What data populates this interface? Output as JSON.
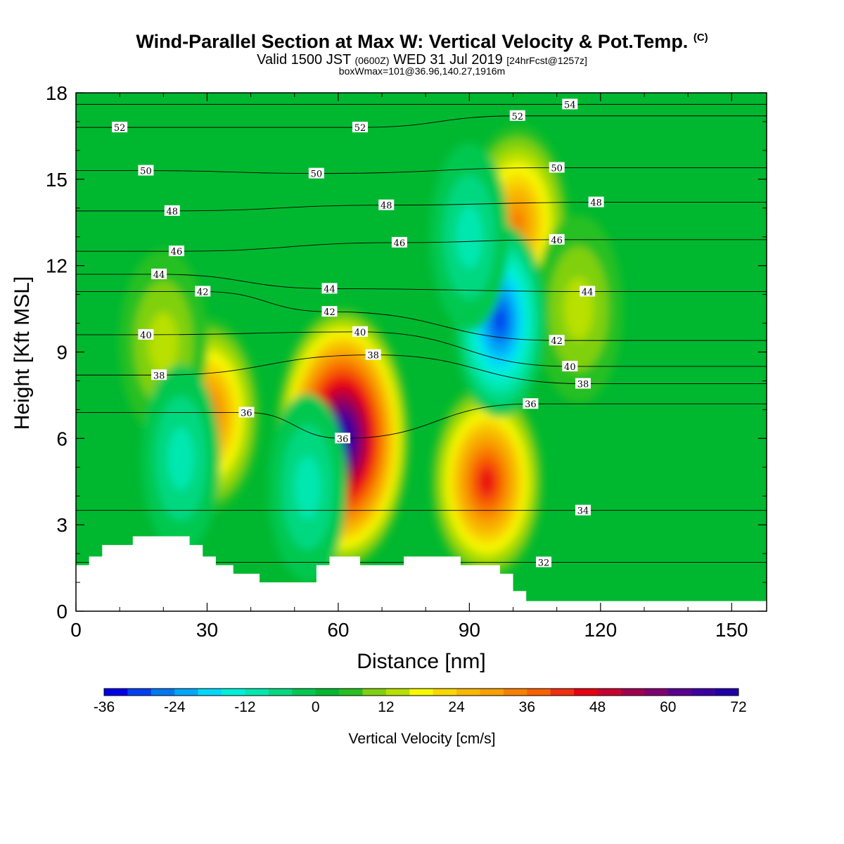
{
  "header": {
    "title": "Wind-Parallel Section at Max W: Vertical Velocity & Pot.Temp.",
    "title_tag": "(C)",
    "valid_prefix": "Valid 1500 JST",
    "valid_utc": "(0600Z)",
    "valid_date": "WED 31 Jul 2019",
    "forecast": "[24hrFcst@1257z]",
    "box_info": "boxWmax=101@36.96,140.27,1916m"
  },
  "chart_data": {
    "type": "heatmap",
    "xlabel": "Distance [nm]",
    "ylabel": "Height [Kft MSL]",
    "xlim": [
      0,
      158
    ],
    "ylim": [
      0,
      18
    ],
    "xticks": [
      0,
      30,
      60,
      90,
      120,
      150
    ],
    "yticks": [
      0,
      3,
      6,
      9,
      12,
      15,
      18
    ],
    "colorbar": {
      "label": "Vertical Velocity [cm/s]",
      "min": -36,
      "max": 72,
      "step": 4,
      "tick_values": [
        -36,
        -24,
        -12,
        0,
        12,
        24,
        36,
        48,
        60,
        72
      ],
      "colors": [
        "#0000e6",
        "#0040f0",
        "#0078f0",
        "#00a8f8",
        "#00d8f8",
        "#00f0d8",
        "#00e8b0",
        "#00d880",
        "#00c850",
        "#00b830",
        "#28c020",
        "#80d010",
        "#b8e000",
        "#f8f800",
        "#f8d800",
        "#f8b800",
        "#f8a000",
        "#f88000",
        "#f86000",
        "#f03010",
        "#e80010",
        "#c80030",
        "#a00050",
        "#800070",
        "#5a0090",
        "#3c00a0",
        "#2000a8"
      ]
    },
    "updrafts": [
      {
        "x": 30,
        "z": 6.8,
        "w": 34
      },
      {
        "x": 61,
        "z": 6.0,
        "w": 72
      },
      {
        "x": 94,
        "z": 4.5,
        "w": 44
      },
      {
        "x": 101,
        "z": 13.5,
        "w": 30
      },
      {
        "x": 115,
        "z": 10.5,
        "w": 12
      },
      {
        "x": 20,
        "z": 9.3,
        "w": 10
      }
    ],
    "downdrafts": [
      {
        "x": 53,
        "z": 4.3,
        "w": -14
      },
      {
        "x": 97,
        "z": 10.1,
        "w": -34
      },
      {
        "x": 90,
        "z": 13.0,
        "w": -14
      },
      {
        "x": 24,
        "z": 5.3,
        "w": -12
      }
    ],
    "terrain": [
      [
        0,
        1.6
      ],
      [
        3,
        1.6
      ],
      [
        3,
        1.9
      ],
      [
        6,
        1.9
      ],
      [
        6,
        2.3
      ],
      [
        13,
        2.3
      ],
      [
        13,
        2.6
      ],
      [
        26,
        2.6
      ],
      [
        26,
        2.3
      ],
      [
        29,
        2.3
      ],
      [
        29,
        1.9
      ],
      [
        32,
        1.9
      ],
      [
        32,
        1.6
      ],
      [
        36,
        1.6
      ],
      [
        36,
        1.3
      ],
      [
        42,
        1.3
      ],
      [
        42,
        1.0
      ],
      [
        55,
        1.0
      ],
      [
        55,
        1.6
      ],
      [
        58,
        1.6
      ],
      [
        58,
        1.9
      ],
      [
        65,
        1.9
      ],
      [
        65,
        1.6
      ],
      [
        75,
        1.6
      ],
      [
        75,
        1.9
      ],
      [
        88,
        1.9
      ],
      [
        88,
        1.6
      ],
      [
        97,
        1.6
      ],
      [
        97,
        1.3
      ],
      [
        100,
        1.3
      ],
      [
        100,
        0.7
      ],
      [
        103,
        0.7
      ],
      [
        103,
        0.35
      ],
      [
        158,
        0.35
      ]
    ],
    "theta_contours": [
      {
        "level": 32,
        "label_pos": [
          107,
          1.7
        ]
      },
      {
        "level": 34,
        "label_pos": [
          116,
          3.5
        ]
      },
      {
        "level": 36,
        "label_pos": [
          39,
          6.9
        ]
      },
      {
        "level": 36,
        "label_pos": [
          61,
          6.0
        ]
      },
      {
        "level": 36,
        "label_pos": [
          104,
          7.2
        ]
      },
      {
        "level": 38,
        "label_pos": [
          19,
          8.2
        ]
      },
      {
        "level": 38,
        "label_pos": [
          68,
          8.9
        ]
      },
      {
        "level": 38,
        "label_pos": [
          116,
          7.9
        ]
      },
      {
        "level": 40,
        "label_pos": [
          16,
          9.6
        ]
      },
      {
        "level": 40,
        "label_pos": [
          65,
          9.7
        ]
      },
      {
        "level": 40,
        "label_pos": [
          113,
          8.5
        ]
      },
      {
        "level": 42,
        "label_pos": [
          29,
          11.1
        ]
      },
      {
        "level": 42,
        "label_pos": [
          58,
          10.4
        ]
      },
      {
        "level": 42,
        "label_pos": [
          110,
          9.4
        ]
      },
      {
        "level": 44,
        "label_pos": [
          19,
          11.7
        ]
      },
      {
        "level": 44,
        "label_pos": [
          58,
          11.2
        ]
      },
      {
        "level": 44,
        "label_pos": [
          117,
          11.1
        ]
      },
      {
        "level": 46,
        "label_pos": [
          23,
          12.5
        ]
      },
      {
        "level": 46,
        "label_pos": [
          74,
          12.8
        ]
      },
      {
        "level": 46,
        "label_pos": [
          110,
          12.9
        ]
      },
      {
        "level": 48,
        "label_pos": [
          22,
          13.9
        ]
      },
      {
        "level": 48,
        "label_pos": [
          71,
          14.1
        ]
      },
      {
        "level": 48,
        "label_pos": [
          119,
          14.2
        ]
      },
      {
        "level": 50,
        "label_pos": [
          16,
          15.3
        ]
      },
      {
        "level": 50,
        "label_pos": [
          55,
          15.2
        ]
      },
      {
        "level": 50,
        "label_pos": [
          110,
          15.4
        ]
      },
      {
        "level": 52,
        "label_pos": [
          10,
          16.8
        ]
      },
      {
        "level": 52,
        "label_pos": [
          65,
          16.8
        ]
      },
      {
        "level": 52,
        "label_pos": [
          101,
          17.2
        ]
      },
      {
        "level": 54,
        "label_pos": [
          113,
          17.6
        ]
      }
    ]
  }
}
